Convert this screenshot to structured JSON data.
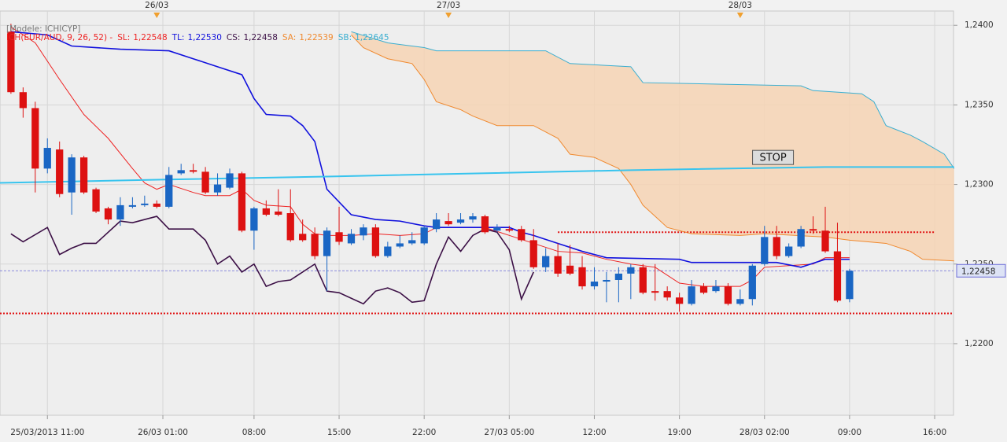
{
  "chart_data": {
    "type": "candlestick",
    "model": "[Modele: ICHICYP]",
    "indicator": "ICH(EUR/AUD, 9, 26, 52) -",
    "categories": [
      null,
      null,
      null,
      null,
      null,
      null,
      null,
      null,
      null,
      null,
      null,
      null,
      null,
      null,
      null,
      null,
      null,
      null,
      null,
      null,
      null,
      null,
      null,
      null,
      null,
      null,
      null,
      null,
      null,
      null,
      null,
      null,
      null,
      null,
      null,
      null,
      null,
      null,
      null,
      null,
      null,
      null,
      null,
      null,
      null,
      null,
      null,
      null,
      null,
      null,
      null,
      null,
      null,
      null,
      null,
      null,
      null,
      null,
      null,
      null,
      null,
      null,
      null,
      null,
      null,
      null,
      null,
      null,
      null,
      null
    ],
    "open": [
      1.2396,
      1.2358,
      1.2348,
      1.231,
      1.2322,
      1.2295,
      1.2317,
      1.2297,
      1.2285,
      1.2278,
      1.2286,
      1.2287,
      1.2288,
      1.2286,
      1.2307,
      1.2309,
      1.2308,
      1.2295,
      1.2298,
      1.2307,
      1.2271,
      1.2285,
      1.2283,
      1.2282,
      1.2269,
      1.2269,
      1.2255,
      1.227,
      1.2263,
      1.2268,
      1.2273,
      1.2255,
      1.2261,
      1.2263,
      1.2263,
      1.2272,
      1.2277,
      1.2276,
      1.2278,
      1.228,
      1.2271,
      1.2272,
      1.2272,
      1.2265,
      1.2248,
      1.2255,
      1.2249,
      1.2248,
      1.2236,
      1.2239,
      1.224,
      1.2244,
      1.2248,
      1.2233,
      1.2233,
      1.2229,
      1.2225,
      1.2236,
      1.2233,
      1.2236,
      1.2225,
      1.2228,
      1.225,
      1.2267,
      1.2255,
      1.2261,
      1.2272,
      1.2271,
      1.2258,
      1.2228
    ],
    "high": [
      1.2401,
      1.2361,
      1.2352,
      1.2329,
      1.2327,
      1.2319,
      1.2318,
      1.2298,
      1.2286,
      1.2292,
      1.2292,
      1.2293,
      1.229,
      1.2311,
      1.2313,
      1.2313,
      1.2311,
      1.2307,
      1.231,
      1.2308,
      1.2286,
      1.229,
      1.2297,
      1.2297,
      1.2278,
      1.2273,
      1.2273,
      1.2286,
      1.2272,
      1.2275,
      1.2275,
      1.2264,
      1.2268,
      1.227,
      1.2274,
      1.2282,
      1.2282,
      1.2282,
      1.2282,
      1.2281,
      1.2275,
      1.2274,
      1.2274,
      1.2272,
      1.226,
      1.2263,
      1.2262,
      1.2255,
      1.2248,
      1.2245,
      1.2248,
      1.225,
      1.225,
      1.225,
      1.2236,
      1.2232,
      1.224,
      1.2238,
      1.224,
      1.2238,
      1.2234,
      1.225,
      1.2274,
      1.2274,
      1.2263,
      1.2274,
      1.228,
      1.2286,
      1.2276,
      1.2247
    ],
    "low": [
      1.2357,
      1.2342,
      1.2295,
      1.2307,
      1.2292,
      1.2281,
      1.2294,
      1.2282,
      1.2275,
      1.2274,
      1.2285,
      1.2286,
      1.2285,
      1.2285,
      1.2306,
      1.2307,
      1.2294,
      1.2293,
      1.2297,
      1.227,
      1.2259,
      1.228,
      1.228,
      1.2264,
      1.2264,
      1.2253,
      1.2233,
      1.2262,
      1.2262,
      1.2265,
      1.2254,
      1.2254,
      1.226,
      1.2262,
      1.2262,
      1.227,
      1.2274,
      1.2275,
      1.2276,
      1.2269,
      1.227,
      1.227,
      1.2264,
      1.2247,
      1.2245,
      1.2242,
      1.2243,
      1.2234,
      1.2234,
      1.2226,
      1.2226,
      1.2228,
      1.2231,
      1.2227,
      1.2227,
      1.222,
      1.2224,
      1.2231,
      1.2232,
      1.2224,
      1.2224,
      1.2224,
      1.2249,
      1.2253,
      1.2254,
      1.226,
      1.2269,
      1.2257,
      1.2226,
      1.2226
    ],
    "close": [
      1.2358,
      1.2348,
      1.231,
      1.2323,
      1.2294,
      1.2317,
      1.2295,
      1.2283,
      1.2278,
      1.2287,
      1.2287,
      1.2288,
      1.2286,
      1.2306,
      1.2309,
      1.2308,
      1.2295,
      1.23,
      1.2307,
      1.2271,
      1.2285,
      1.2281,
      1.2281,
      1.2265,
      1.2265,
      1.2255,
      1.2271,
      1.2264,
      1.2269,
      1.2273,
      1.2255,
      1.2261,
      1.2263,
      1.2265,
      1.2273,
      1.2278,
      1.2275,
      1.2278,
      1.228,
      1.227,
      1.2273,
      1.2271,
      1.2265,
      1.2248,
      1.2255,
      1.2244,
      1.2244,
      1.2236,
      1.2239,
      1.224,
      1.2244,
      1.2248,
      1.2232,
      1.2232,
      1.2229,
      1.2225,
      1.2236,
      1.2232,
      1.2236,
      1.2225,
      1.2228,
      1.2249,
      1.2267,
      1.2255,
      1.2261,
      1.2272,
      1.2271,
      1.2258,
      1.2227,
      1.22458
    ],
    "up_color": "#1a66c4",
    "down_color": "#dd1111",
    "cloud_color": "#f6d4b4",
    "lines": [
      {
        "name": "SL:",
        "color": "#ee2222",
        "width": 1,
        "legend_value": {
          "value": 1.22548,
          "label": "1,22548"
        },
        "x": [
          0,
          2,
          4,
          6,
          8,
          10,
          11,
          12,
          13,
          15,
          16,
          18,
          19,
          20,
          21,
          23,
          24,
          25,
          26,
          28,
          30,
          32,
          34,
          35,
          37,
          39,
          41,
          43,
          45,
          47,
          49,
          51,
          53,
          55,
          57,
          59,
          60,
          61,
          62,
          64,
          66,
          67,
          69
        ],
        "values": [
          1.2399,
          1.2389,
          1.2366,
          1.2344,
          1.2329,
          1.231,
          1.2301,
          1.2297,
          1.23,
          1.2295,
          1.2293,
          1.2293,
          1.2297,
          1.229,
          1.2287,
          1.2286,
          1.2275,
          1.2269,
          1.2268,
          1.2268,
          1.2269,
          1.2268,
          1.2269,
          1.2273,
          1.2273,
          1.2273,
          1.2268,
          1.2263,
          1.2258,
          1.2257,
          1.2253,
          1.225,
          1.2248,
          1.2238,
          1.2236,
          1.2236,
          1.2236,
          1.224,
          1.2248,
          1.2249,
          1.225,
          1.2254,
          1.2254
        ]
      },
      {
        "name": "TL:",
        "color": "#1010dd",
        "width": 1.6,
        "legend_value": {
          "value": 1.2253,
          "label": "1,22530"
        },
        "x": [
          0,
          3,
          5,
          7,
          9,
          13,
          15,
          17,
          19,
          20,
          21,
          23,
          24,
          25,
          26,
          28,
          30,
          32,
          34,
          35,
          41,
          42,
          43,
          45,
          47,
          49,
          55,
          56,
          63,
          65,
          67,
          69
        ],
        "values": [
          1.2396,
          1.2394,
          1.2387,
          1.2386,
          1.2385,
          1.2384,
          1.2379,
          1.2374,
          1.2369,
          1.2354,
          1.2344,
          1.2343,
          1.2337,
          1.2327,
          1.2297,
          1.2281,
          1.2278,
          1.2277,
          1.2274,
          1.2273,
          1.2273,
          1.227,
          1.2268,
          1.2263,
          1.2258,
          1.2254,
          1.2253,
          1.2251,
          1.2251,
          1.2248,
          1.2253,
          1.2253
        ]
      },
      {
        "name": "CS:",
        "color": "#3c1046",
        "width": 1.6,
        "legend_value": {
          "value": 1.22458,
          "label": "1,22458"
        },
        "x": [
          0,
          1,
          3,
          4,
          5,
          6,
          7,
          9,
          10,
          12,
          13,
          15,
          16,
          17,
          18,
          19,
          20,
          21,
          22,
          23,
          25,
          26,
          27,
          29,
          30,
          31,
          32,
          33,
          34,
          35,
          36,
          37,
          38,
          39,
          40,
          41,
          42,
          43
        ],
        "values": [
          1.2269,
          1.2264,
          1.2273,
          1.2256,
          1.226,
          1.2263,
          1.2263,
          1.2277,
          1.2276,
          1.228,
          1.2272,
          1.2272,
          1.2265,
          1.225,
          1.2255,
          1.2245,
          1.225,
          1.2236,
          1.2239,
          1.224,
          1.225,
          1.2233,
          1.2232,
          1.2225,
          1.2233,
          1.2235,
          1.2232,
          1.2226,
          1.2227,
          1.225,
          1.2267,
          1.2258,
          1.2268,
          1.2272,
          1.227,
          1.2259,
          1.2228,
          1.2245
        ]
      },
      {
        "name": "SA:",
        "color": "#f08a30",
        "width": 1,
        "legend_value": {
          "value": 1.22539,
          "label": "1,22539"
        },
        "x": [
          28,
          29,
          31,
          33,
          34,
          35,
          37,
          38,
          40,
          43,
          45,
          46,
          48,
          50,
          51,
          52,
          53,
          54,
          55,
          56,
          60,
          62,
          67,
          69,
          72,
          74,
          75,
          77.6
        ],
        "values": [
          1.2394,
          1.2386,
          1.2379,
          1.2376,
          1.2366,
          1.2352,
          1.2347,
          1.2343,
          1.2337,
          1.2337,
          1.2329,
          1.2319,
          1.2317,
          1.231,
          1.23,
          1.2287,
          1.228,
          1.2273,
          1.2271,
          1.2269,
          1.2268,
          1.2269,
          1.2267,
          1.2265,
          1.2263,
          1.2258,
          1.2253,
          1.2252
        ]
      },
      {
        "name": "SB:",
        "color": "#3aaed0",
        "width": 1,
        "legend_value": {
          "value": 1.22645,
          "label": "1,22645"
        },
        "x": [
          28,
          31,
          34,
          35,
          44,
          46,
          51,
          52,
          65,
          66,
          70,
          71,
          72,
          74,
          75,
          76.8,
          77.6
        ],
        "values": [
          1.2396,
          1.2389,
          1.2386,
          1.2384,
          1.2384,
          1.2376,
          1.2374,
          1.2364,
          1.2362,
          1.2359,
          1.2357,
          1.2352,
          1.2337,
          1.2331,
          1.2327,
          1.2319,
          1.231
        ]
      },
      {
        "color": "#38c4ee",
        "width": 2,
        "x": [
          -0.9,
          12,
          26,
          51,
          67,
          77.6
        ],
        "values": [
          1.2301,
          1.2303,
          1.2305,
          1.2309,
          1.2311,
          1.2311
        ]
      }
    ],
    "levels": [
      {
        "value": 1.2219,
        "color": "#e01010"
      },
      {
        "value": 1.227,
        "color": "#e01010",
        "x": [
          45,
          76
        ]
      }
    ],
    "last_price": {
      "value": 1.22458,
      "label": "1,22458",
      "color": "#6a6ad8"
    },
    "annotation": {
      "text": "STOP",
      "x": 62.7,
      "y": 1.2317
    },
    "day_markers": [
      {
        "value": 12,
        "label": "26/03"
      },
      {
        "value": 36,
        "label": "27/03"
      },
      {
        "value": 60,
        "label": "28/03"
      }
    ],
    "xlim": [
      -0.9,
      77.55
    ],
    "xticks": [
      {
        "value": 3,
        "label": "25/03/2013 11:00"
      },
      {
        "value": 12.5,
        "label": "26/03 01:00"
      },
      {
        "value": 20,
        "label": "08:00"
      },
      {
        "value": 27,
        "label": "15:00"
      },
      {
        "value": 34,
        "label": "22:00"
      },
      {
        "value": 41,
        "label": "27/03 05:00"
      },
      {
        "value": 48,
        "label": "12:00"
      },
      {
        "value": 55,
        "label": "19:00"
      },
      {
        "value": 62,
        "label": "28/03 02:00"
      },
      {
        "value": 69,
        "label": "09:00"
      },
      {
        "value": 76,
        "label": "16:00"
      }
    ],
    "ylim": [
      1.2155,
      1.2409
    ],
    "yticks": [
      {
        "value": 1.24,
        "label": "1,2400"
      },
      {
        "value": 1.235,
        "label": "1,2350"
      },
      {
        "value": 1.23,
        "label": "1,2300"
      },
      {
        "value": 1.225,
        "label": "1,2250"
      },
      {
        "value": 1.22,
        "label": "1,2200"
      }
    ],
    "grid": true
  }
}
